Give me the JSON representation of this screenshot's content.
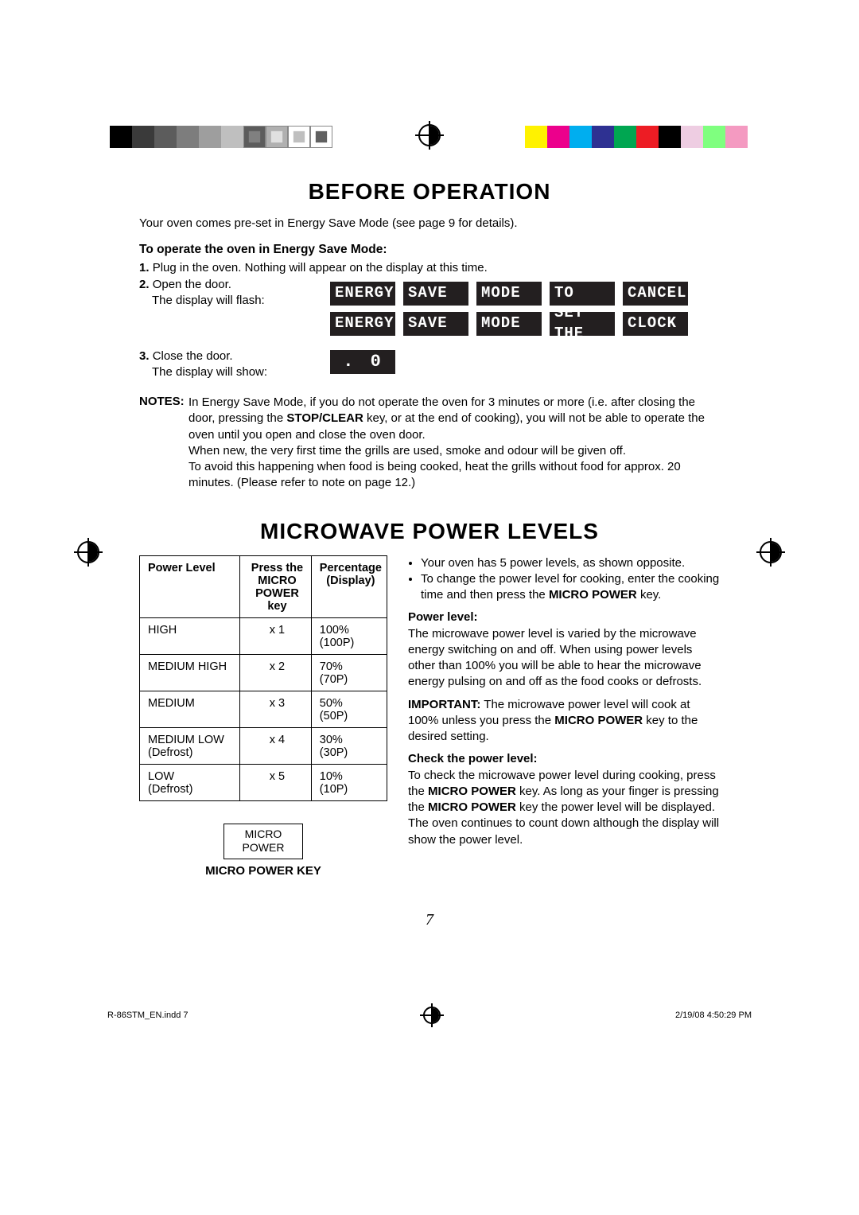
{
  "registration": {
    "left_colors": [
      "#000000",
      "#3a3a3a",
      "#5c5c5c",
      "#7d7d7d",
      "#9e9e9e",
      "#bfbfbf",
      "#5c5c5c",
      "#b0b0b0",
      "#ffffff",
      "#ffffff"
    ],
    "left_inner": [
      null,
      null,
      null,
      null,
      null,
      null,
      "#808080",
      "#e0e0e0",
      "#bfbfbf",
      "#606060"
    ],
    "right_colors": [
      "#fff200",
      "#ec008c",
      "#00aeef",
      "#2e3192",
      "#00a651",
      "#ed1c24",
      "#000000",
      "#eecde2",
      "#7fff7f",
      "#f49ac1"
    ]
  },
  "section1": {
    "title": "BEFORE OPERATION",
    "intro": "Your oven comes pre-set in Energy Save Mode (see page 9 for details).",
    "operate_h": "To operate the oven in Energy Save Mode:",
    "step1": "Plug in the oven. Nothing will appear on the display at this time.",
    "step2a": "Open the door.",
    "step2b": "The display will flash:",
    "lcd_rows": [
      [
        "ENERGY",
        "SAVE",
        "MODE",
        "TO",
        "CANCEL"
      ],
      [
        "ENERGY",
        "SAVE",
        "MODE",
        "SET THE",
        "CLOCK"
      ]
    ],
    "step3a": "Close the door.",
    "step3b": "The display will show:",
    "lcd_small": ". 0",
    "notes_label": "NOTES:",
    "notes_text": "In Energy Save Mode, if you do not operate the oven for 3 minutes or more (i.e. after closing the door, pressing the <b>STOP/CLEAR</b> key, or at the end of cooking), you will not be able to operate the oven until you open and close the oven door.<br>When new, the very first time the grills are used, smoke and odour will be given off.<br>To avoid this happening when food is being cooked, heat the grills without food for approx. 20 minutes. (Please refer to note on page 12.)"
  },
  "section2": {
    "title": "MICROWAVE POWER LEVELS",
    "table": {
      "headers": [
        "Power Level",
        "Press the\nMICRO\nPOWER key",
        "Percentage\n(Display)"
      ],
      "col_widths": [
        "41%",
        "29%",
        "30%"
      ],
      "rows": [
        [
          "HIGH",
          "x 1",
          "100%\n(100P)"
        ],
        [
          "MEDIUM HIGH",
          "x 2",
          "70%\n(70P)"
        ],
        [
          "MEDIUM",
          "x 3",
          "50%\n(50P)"
        ],
        [
          "MEDIUM LOW\n(Defrost)",
          "x 4",
          "30%\n(30P)"
        ],
        [
          "LOW\n(Defrost)",
          "x 5",
          "10%\n(10P)"
        ]
      ]
    },
    "key_badge_l1": "MICRO",
    "key_badge_l2": "POWER",
    "key_label": "MICRO POWER KEY",
    "bullets": [
      "Your oven has 5 power levels, as shown opposite.",
      "To change the power level for cooking, enter the cooking time and then press the <b>MICRO POWER</b> key."
    ],
    "pl_h": "Power level:",
    "pl_text": "The microwave power level is varied by the microwave energy switching on and off. When using power levels other than 100% you will be able to hear the microwave energy pulsing on and off as the food cooks or defrosts.",
    "important": "<b>IMPORTANT:</b> The microwave power level will cook at 100% unless you press the <b>MICRO POWER</b> key to the desired setting.",
    "check_h": "Check the power level:",
    "check_text": "To check the microwave power level during cooking, press the <b>MICRO POWER</b> key. As long as your finger is pressing the <b>MICRO POWER</b> key the power level will be displayed. The oven continues to count down although the display will show the power level."
  },
  "page_number": "7",
  "footer": {
    "left": "R-86STM_EN.indd   7",
    "right": "2/19/08   4:50:29 PM"
  }
}
